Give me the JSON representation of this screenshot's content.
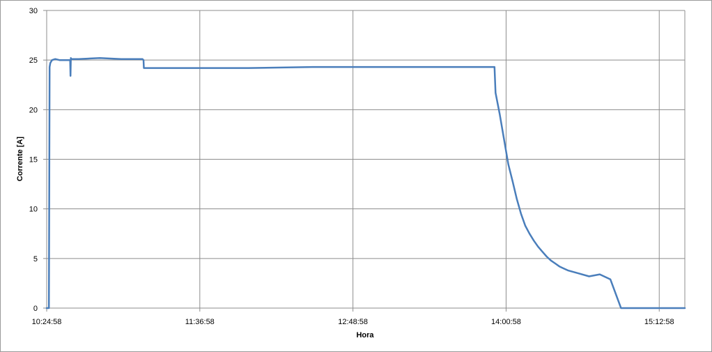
{
  "chart_data": {
    "type": "line",
    "title": "",
    "xlabel": "Hora",
    "ylabel": "Corrente [A]",
    "ylim": [
      0,
      30
    ],
    "yticks": [
      "0",
      "5",
      "10",
      "15",
      "20",
      "25",
      "30"
    ],
    "xlim": [
      "10:24:58",
      "15:25:00"
    ],
    "xticks": [
      "10:24:58",
      "11:36:58",
      "12:48:58",
      "14:00:58",
      "15:12:58"
    ],
    "grid": true,
    "legend": "none",
    "series_color": "#4a7ebb",
    "series": [
      {
        "x": [
          "10:24:58",
          "10:26:00",
          "10:26:20",
          "10:26:40",
          "10:27:30",
          "10:29:00",
          "10:31:00",
          "10:36:00",
          "10:36:10",
          "10:36:20",
          "10:36:30",
          "10:40:00",
          "10:50:00",
          "11:00:00",
          "11:10:00",
          "11:10:30",
          "11:10:40",
          "11:20:00",
          "11:40:00",
          "12:00:00",
          "12:30:00",
          "13:00:00",
          "13:30:00",
          "13:55:00",
          "13:55:30",
          "13:56:00",
          "13:58:00",
          "14:00:00",
          "14:02:00",
          "14:04:00",
          "14:06:00",
          "14:08:00",
          "14:10:00",
          "14:12:00",
          "14:14:00",
          "14:16:00",
          "14:18:00",
          "14:20:00",
          "14:22:00",
          "14:24:00",
          "14:26:00",
          "14:28:00",
          "14:30:00",
          "14:35:00",
          "14:40:00",
          "14:45:00",
          "14:50:00",
          "14:55:00",
          "15:00:00",
          "15:03:00",
          "15:04:00",
          "15:05:00",
          "15:05:20",
          "15:05:30",
          "15:10:00",
          "15:20:00",
          "15:25:00"
        ],
        "y": [
          0,
          0,
          24.3,
          24.7,
          25.0,
          25.1,
          25.0,
          25.0,
          23.4,
          25.2,
          25.1,
          25.1,
          25.2,
          25.1,
          25.1,
          25.0,
          24.2,
          24.2,
          24.2,
          24.2,
          24.3,
          24.3,
          24.3,
          24.3,
          24.3,
          21.7,
          19.5,
          17.0,
          14.5,
          12.8,
          11.0,
          9.5,
          8.3,
          7.5,
          6.8,
          6.2,
          5.7,
          5.2,
          4.8,
          4.5,
          4.2,
          4.0,
          3.8,
          3.5,
          3.2,
          3.4,
          2.9,
          0,
          0,
          0,
          0,
          0,
          0,
          0,
          0,
          0,
          0
        ]
      }
    ]
  }
}
